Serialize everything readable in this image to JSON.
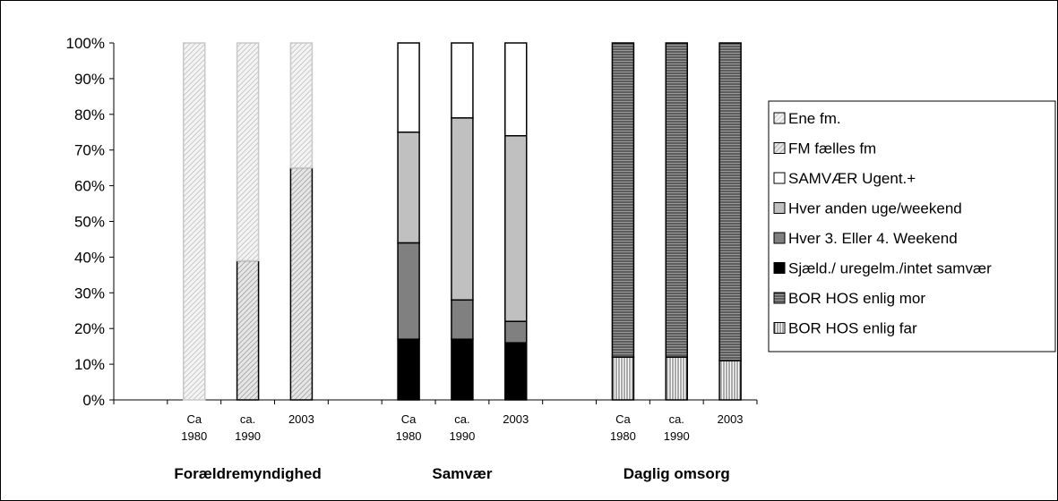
{
  "chart_data": {
    "type": "bar",
    "stacked": true,
    "ylim": [
      0,
      100
    ],
    "y_ticks": [
      "0%",
      "10%",
      "20%",
      "30%",
      "40%",
      "50%",
      "60%",
      "70%",
      "80%",
      "90%",
      "100%"
    ],
    "grid": false,
    "legend_position": "right",
    "groups": [
      {
        "name": "Forældremyndighed",
        "categories": [
          [
            "Ca",
            "1980"
          ],
          [
            "ca.",
            "1990"
          ],
          [
            "2003"
          ]
        ],
        "series": [
          {
            "name": "FM fælles fm",
            "values": [
              0,
              39,
              65
            ]
          },
          {
            "name": "Ene fm.",
            "values": [
              100,
              61,
              35
            ]
          }
        ]
      },
      {
        "name": "Samvær",
        "categories": [
          [
            "Ca",
            "1980"
          ],
          [
            "ca.",
            "1990"
          ],
          [
            "2003"
          ]
        ],
        "series": [
          {
            "name": "Sjæld./ uregelm./intet samvær",
            "values": [
              17,
              17,
              16
            ]
          },
          {
            "name": "Hver 3. Eller 4. Weekend",
            "values": [
              27,
              11,
              6
            ]
          },
          {
            "name": "Hver anden uge/weekend",
            "values": [
              31,
              51,
              52
            ]
          },
          {
            "name": "SAMVÆR Ugent.+",
            "values": [
              25,
              21,
              26
            ]
          }
        ]
      },
      {
        "name": "Daglig omsorg",
        "categories": [
          [
            "Ca",
            "1980"
          ],
          [
            "ca.",
            "1990"
          ],
          [
            "2003"
          ]
        ],
        "series": [
          {
            "name": "BOR HOS enlig far",
            "values": [
              12,
              12,
              11
            ]
          },
          {
            "name": "BOR HOS enlig mor",
            "values": [
              88,
              88,
              89
            ]
          }
        ]
      }
    ],
    "legend": [
      {
        "name": "Ene fm.",
        "fill": "diag-light"
      },
      {
        "name": "FM fælles fm",
        "fill": "diag-grey"
      },
      {
        "name": "SAMVÆR Ugent.+",
        "fill": "white"
      },
      {
        "name": "Hver anden uge/weekend",
        "fill": "light-grey"
      },
      {
        "name": "Hver 3. Eller 4. Weekend",
        "fill": "mid-grey"
      },
      {
        "name": "Sjæld./ uregelm./intet samvær",
        "fill": "black"
      },
      {
        "name": "BOR HOS enlig mor",
        "fill": "horiz-lines"
      },
      {
        "name": "BOR HOS enlig far",
        "fill": "vert-lines"
      }
    ]
  }
}
